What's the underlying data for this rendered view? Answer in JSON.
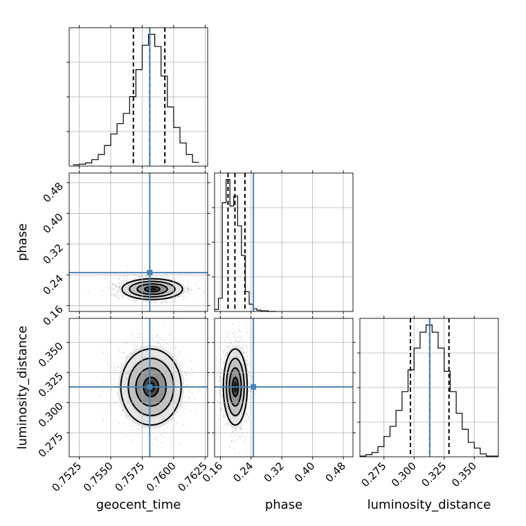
{
  "chart_data": {
    "type": "corner",
    "parameters": [
      "geocent_time",
      "phase",
      "luminosity_distance"
    ],
    "axis_labels": {
      "x": [
        "geocent_time",
        "phase",
        "luminosity_distance"
      ],
      "y_row2": "phase",
      "y_row3": "luminosity_distance"
    },
    "ranges": {
      "geocent_time": [
        0.7517,
        0.7627
      ],
      "phase": [
        0.145,
        0.505
      ],
      "luminosity_distance": [
        0.255,
        0.37
      ]
    },
    "ticks": {
      "geocent_time": [
        "0.7525",
        "0.7550",
        "0.7575",
        "0.7600",
        "0.7625"
      ],
      "phase": [
        "0.16",
        "0.24",
        "0.32",
        "0.40",
        "0.48"
      ],
      "luminosity_distance": [
        "0.275",
        "0.300",
        "0.325",
        "0.350"
      ]
    },
    "truths": {
      "geocent_time": 0.7581,
      "phase": 0.246,
      "luminosity_distance": 0.313
    },
    "quantiles": {
      "geocent_time": [
        0.7568,
        0.7581,
        0.7593
      ],
      "phase": [
        0.18,
        0.198,
        0.224
      ],
      "luminosity_distance": [
        0.297,
        0.313,
        0.329
      ]
    },
    "histograms": {
      "geocent_time": {
        "edges": [
          0.752,
          0.7525,
          0.753,
          0.7535,
          0.754,
          0.7545,
          0.755,
          0.7555,
          0.756,
          0.7565,
          0.757,
          0.7575,
          0.758,
          0.7585,
          0.759,
          0.7595,
          0.76,
          0.7605,
          0.761,
          0.7615,
          0.762
        ],
        "counts": [
          2,
          3,
          5,
          10,
          18,
          32,
          50,
          66,
          82,
          108,
          150,
          188,
          205,
          186,
          140,
          92,
          60,
          36,
          18,
          6
        ]
      },
      "phase": {
        "edges": [
          0.145,
          0.155,
          0.165,
          0.175,
          0.185,
          0.195,
          0.205,
          0.215,
          0.225,
          0.235,
          0.245,
          0.255,
          0.265,
          0.275,
          0.285,
          0.295,
          0.305
        ],
        "counts": [
          3,
          20,
          165,
          200,
          160,
          175,
          130,
          85,
          30,
          11,
          4,
          2,
          1,
          1,
          0,
          0
        ]
      },
      "luminosity_distance": {
        "edges": [
          0.255,
          0.26,
          0.265,
          0.27,
          0.275,
          0.28,
          0.285,
          0.29,
          0.295,
          0.3,
          0.305,
          0.31,
          0.315,
          0.32,
          0.325,
          0.33,
          0.335,
          0.34,
          0.345,
          0.35,
          0.355,
          0.36,
          0.365,
          0.37
        ],
        "counts": [
          1,
          3,
          6,
          14,
          28,
          42,
          64,
          90,
          120,
          150,
          172,
          182,
          172,
          150,
          118,
          90,
          60,
          38,
          20,
          12,
          4,
          1,
          1
        ]
      }
    },
    "joint": {
      "phase_vs_geocent_time": {
        "center": [
          0.7583,
          0.203
        ],
        "sigma": [
          0.0012,
          0.0135
        ]
      },
      "luminosity_distance_vs_geocent_time": {
        "center": [
          0.7582,
          0.313
        ],
        "sigma": [
          0.0012,
          0.0158
        ]
      },
      "luminosity_distance_vs_phase": {
        "center": [
          0.199,
          0.313
        ],
        "sigma": [
          0.0155,
          0.0158
        ]
      }
    },
    "grid": true,
    "truth_color": "#4682b4"
  }
}
